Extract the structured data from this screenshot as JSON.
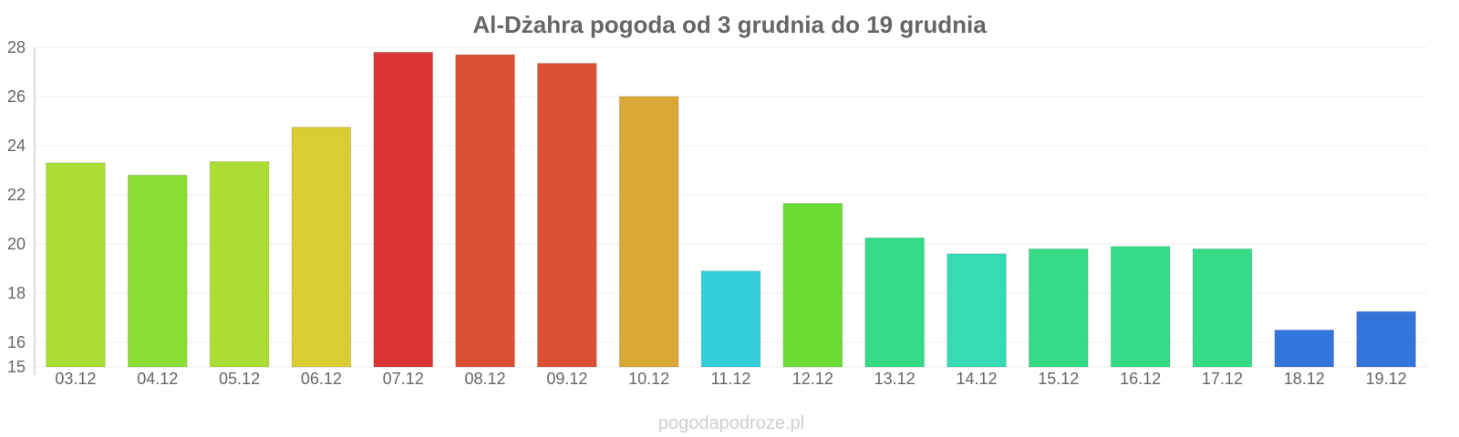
{
  "chart_data": {
    "type": "bar",
    "title": "Al-Dżahra pogoda od 3 grudnia do 19 grudnia",
    "xlabel": "",
    "ylabel": "",
    "categories": [
      "03.12",
      "04.12",
      "05.12",
      "06.12",
      "07.12",
      "08.12",
      "09.12",
      "10.12",
      "11.12",
      "12.12",
      "13.12",
      "14.12",
      "15.12",
      "16.12",
      "17.12",
      "18.12",
      "19.12"
    ],
    "values": [
      23.3,
      22.8,
      23.35,
      24.75,
      27.8,
      27.7,
      27.35,
      26.0,
      18.9,
      21.65,
      20.25,
      19.6,
      19.8,
      19.9,
      19.8,
      16.5,
      17.25
    ],
    "colors": [
      "#abdd35",
      "#8ade34",
      "#abdd35",
      "#d9cd33",
      "#db3434",
      "#dc5034",
      "#dc5034",
      "#daa834",
      "#34ced9",
      "#6cdb34",
      "#36db88",
      "#36dbb6",
      "#36db88",
      "#36db88",
      "#36db88",
      "#3475db",
      "#3475db"
    ],
    "y_ticks": [
      15,
      16,
      18,
      20,
      22,
      24,
      26,
      28
    ],
    "ylim": [
      15,
      28
    ],
    "grid": true,
    "legend": "none"
  },
  "watermark": "pogodapodroze.pl"
}
